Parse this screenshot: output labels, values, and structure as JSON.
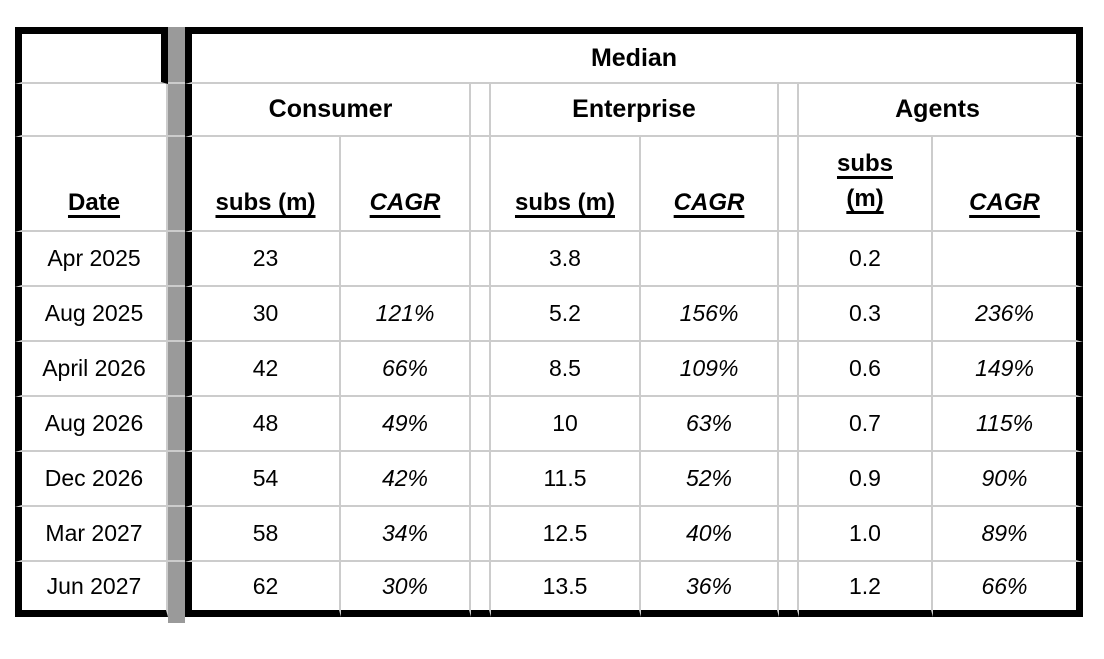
{
  "table": {
    "median_label": "Median",
    "group_labels": [
      "Consumer",
      "Enterprise",
      "Agents"
    ],
    "column_headers": {
      "date": "Date",
      "subs": "subs (m)",
      "cagr": "CAGR"
    },
    "rows": [
      {
        "date": "Apr 2025",
        "consumer_subs": "23",
        "consumer_cagr": "",
        "enterprise_subs": "3.8",
        "enterprise_cagr": "",
        "agents_subs": "0.2",
        "agents_cagr": ""
      },
      {
        "date": "Aug 2025",
        "consumer_subs": "30",
        "consumer_cagr": "121%",
        "enterprise_subs": "5.2",
        "enterprise_cagr": "156%",
        "agents_subs": "0.3",
        "agents_cagr": "236%"
      },
      {
        "date": "April 2026",
        "consumer_subs": "42",
        "consumer_cagr": "66%",
        "enterprise_subs": "8.5",
        "enterprise_cagr": "109%",
        "agents_subs": "0.6",
        "agents_cagr": "149%"
      },
      {
        "date": "Aug 2026",
        "consumer_subs": "48",
        "consumer_cagr": "49%",
        "enterprise_subs": "10",
        "enterprise_cagr": "63%",
        "agents_subs": "0.7",
        "agents_cagr": "115%"
      },
      {
        "date": "Dec 2026",
        "consumer_subs": "54",
        "consumer_cagr": "42%",
        "enterprise_subs": "11.5",
        "enterprise_cagr": "52%",
        "agents_subs": "0.9",
        "agents_cagr": "90%"
      },
      {
        "date": "Mar 2027",
        "consumer_subs": "58",
        "consumer_cagr": "34%",
        "enterprise_subs": "12.5",
        "enterprise_cagr": "40%",
        "agents_subs": "1.0",
        "agents_cagr": "89%"
      },
      {
        "date": "Jun 2027",
        "consumer_subs": "62",
        "consumer_cagr": "30%",
        "enterprise_subs": "13.5",
        "enterprise_cagr": "36%",
        "agents_subs": "1.2",
        "agents_cagr": "66%"
      }
    ],
    "colors": {
      "border": "#000000",
      "gridline": "#cccccc",
      "spacer_fill": "#9a9a9a",
      "background": "#ffffff"
    }
  }
}
